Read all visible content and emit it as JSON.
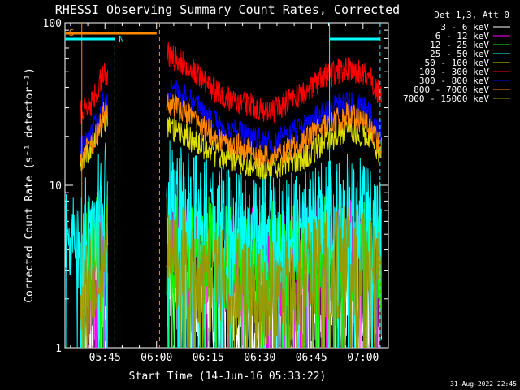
{
  "chart_data": {
    "type": "line",
    "title": "RHESSI Observing Summary Count Rates, Corrected",
    "xlabel": "Start Time (14-Jun-16 05:33:22)",
    "ylabel": "Corrected Count Rate (s⁻¹ detector⁻¹)",
    "yscale": "log",
    "ylim": [
      1,
      100
    ],
    "xlim_minutes": [
      0,
      94
    ],
    "x_tick_labels": [
      "05:45",
      "06:00",
      "06:15",
      "06:30",
      "06:45",
      "07:00"
    ],
    "x_tick_minutes": [
      11.63,
      26.63,
      41.63,
      56.63,
      71.63,
      86.63
    ],
    "y_tick_labels": [
      "1",
      "10",
      "100"
    ],
    "y_tick_values": [
      1,
      10,
      100
    ],
    "legend_title": "Det 1,3, Att 0",
    "legend_position": "right",
    "footer": "31-Aug-2022 22:45",
    "series": [
      {
        "name": "3 - 6 keV",
        "color": "#ffffff",
        "x": [
          4.5,
          8,
          11,
          29,
          35,
          45,
          60,
          70,
          75,
          82,
          88,
          92
        ],
        "y": [
          1.6,
          2.0,
          2.6,
          3.0,
          2.3,
          1.7,
          1.3,
          1.5,
          1.6,
          2.4,
          1.8,
          1.6
        ]
      },
      {
        "name": "6 - 12 keV",
        "color": "#ff00ff",
        "x": [
          4.5,
          8,
          11,
          29,
          35,
          45,
          60,
          70,
          75,
          82,
          88,
          92
        ],
        "y": [
          2.0,
          2.8,
          4.0,
          4.4,
          3.8,
          3.4,
          3.3,
          3.8,
          4.0,
          4.4,
          4.0,
          4.0
        ]
      },
      {
        "name": "12 - 25 keV",
        "color": "#00ff00",
        "x": [
          4.5,
          8,
          11,
          29,
          35,
          45,
          60,
          70,
          75,
          82,
          88,
          92
        ],
        "y": [
          3.0,
          4.0,
          5.6,
          4.6,
          4.3,
          3.9,
          3.6,
          3.9,
          4.0,
          4.2,
          4.1,
          3.8
        ]
      },
      {
        "name": "25 - 50 keV",
        "color": "#00ffff",
        "x": [
          0,
          4.5,
          8,
          11,
          29,
          35,
          45,
          60,
          70,
          75,
          82,
          88,
          92
        ],
        "y": [
          4.2,
          4.6,
          6.0,
          8.8,
          8.8,
          7.6,
          6.0,
          5.2,
          5.8,
          6.4,
          7.5,
          6.2,
          5.0
        ]
      },
      {
        "name": "50 - 100 keV",
        "color": "#dddd00",
        "x": [
          4.5,
          8,
          11,
          29,
          35,
          45,
          60,
          70,
          75,
          82,
          88,
          92
        ],
        "y": [
          14,
          17,
          25,
          24,
          20,
          15,
          12.5,
          15,
          18,
          22,
          20,
          15
        ]
      },
      {
        "name": "100 - 300 keV",
        "color": "#ff0000",
        "x": [
          4.5,
          8,
          11,
          29,
          35,
          45,
          60,
          70,
          75,
          82,
          88,
          92
        ],
        "y": [
          28,
          32,
          48,
          65,
          56,
          36,
          28,
          38,
          46,
          52,
          48,
          35
        ]
      },
      {
        "name": "300 - 800 keV",
        "color": "#0000ff",
        "x": [
          4.5,
          8,
          11,
          29,
          35,
          45,
          60,
          70,
          75,
          82,
          88,
          92
        ],
        "y": [
          17,
          21,
          32,
          41,
          35,
          23,
          18,
          23,
          28,
          32,
          29,
          21
        ]
      },
      {
        "name": "800 - 7000 keV",
        "color": "#ff8800",
        "x": [
          4.5,
          8,
          11,
          29,
          35,
          45,
          60,
          70,
          75,
          82,
          88,
          92
        ],
        "y": [
          14.5,
          18,
          27,
          33,
          28,
          19,
          14.5,
          19,
          23,
          27,
          24,
          17
        ]
      },
      {
        "name": "7000 - 15000 keV",
        "color": "#999900",
        "x": [
          4.5,
          8,
          11,
          29,
          35,
          45,
          60,
          70,
          75,
          82,
          88,
          92
        ],
        "y": [
          1.6,
          2.6,
          4.0,
          4.0,
          3.2,
          2.6,
          2.2,
          2.6,
          3.0,
          3.5,
          3.0,
          2.6
        ]
      }
    ],
    "segments": [
      {
        "label": "S",
        "color": "#ff8800",
        "level": 1.93,
        "x_start": 0,
        "x_end": 26.63
      },
      {
        "label": "N",
        "color": "#00ffff",
        "level": 1.9,
        "x_start": 0,
        "x_end": 14.5
      },
      {
        "label": "",
        "color": "#00ffff",
        "level": 1.9,
        "x_start": 76.9,
        "x_end": 91.6
      }
    ],
    "vertical_lines": [
      {
        "x": 4.9,
        "color": "#ff8800",
        "style": "solid"
      },
      {
        "x": 14.5,
        "color": "#00ffff",
        "style": "dashed"
      },
      {
        "x": 27.5,
        "color": "#ff8800",
        "style": "dashed"
      },
      {
        "x": 76.9,
        "color": "#00ffff",
        "style": "solid"
      },
      {
        "x": 91.6,
        "color": "#00ffff",
        "style": "dashed"
      }
    ],
    "data_gaps": [
      [
        12.5,
        29.5
      ]
    ]
  }
}
